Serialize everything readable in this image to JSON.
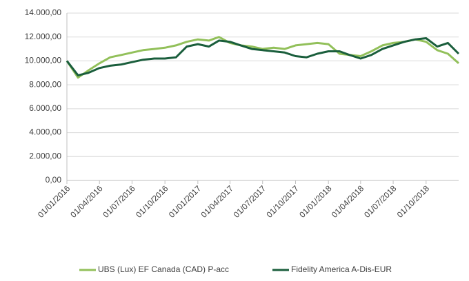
{
  "chart_data": {
    "type": "line",
    "x": [
      "2016-01-01",
      "2016-02-01",
      "2016-03-01",
      "2016-04-01",
      "2016-05-01",
      "2016-06-01",
      "2016-07-01",
      "2016-08-01",
      "2016-09-01",
      "2016-10-01",
      "2016-11-01",
      "2016-12-01",
      "2017-01-01",
      "2017-02-01",
      "2017-03-01",
      "2017-04-01",
      "2017-05-01",
      "2017-06-01",
      "2017-07-01",
      "2017-08-01",
      "2017-09-01",
      "2017-10-01",
      "2017-11-01",
      "2017-12-01",
      "2018-01-01",
      "2018-02-01",
      "2018-03-01",
      "2018-04-01",
      "2018-05-01",
      "2018-06-01",
      "2018-07-01",
      "2018-08-01",
      "2018-09-01",
      "2018-10-01",
      "2018-11-01",
      "2018-12-01",
      "2018-12-31"
    ],
    "series": [
      {
        "name": "UBS (Lux) EF Canada (CAD) P-acc",
        "color": "#92c05a",
        "values": [
          10000,
          8600,
          9200,
          9800,
          10300,
          10500,
          10700,
          10900,
          11000,
          11100,
          11300,
          11600,
          11800,
          11700,
          12000,
          11500,
          11300,
          11200,
          11000,
          11100,
          11000,
          11300,
          11400,
          11500,
          11400,
          10600,
          10500,
          10400,
          10800,
          11300,
          11500,
          11600,
          11800,
          11600,
          10900,
          10600,
          9800
        ]
      },
      {
        "name": "Fidelity America A-Dis-EUR",
        "color": "#1a5e3c",
        "values": [
          10000,
          8800,
          9000,
          9400,
          9600,
          9700,
          9900,
          10100,
          10200,
          10200,
          10300,
          11200,
          11400,
          11200,
          11700,
          11600,
          11300,
          11000,
          10900,
          10800,
          10700,
          10400,
          10300,
          10600,
          10800,
          10800,
          10500,
          10200,
          10500,
          11000,
          11300,
          11600,
          11800,
          11900,
          11200,
          11500,
          10600
        ]
      }
    ],
    "xlim": [
      "2016-01-01",
      "2018-12-31"
    ],
    "xticks": [
      {
        "value": "2016-01-01",
        "label": "01/01/2016"
      },
      {
        "value": "2016-04-01",
        "label": "01/04/2016"
      },
      {
        "value": "2016-07-01",
        "label": "01/07/2016"
      },
      {
        "value": "2016-10-01",
        "label": "01/10/2016"
      },
      {
        "value": "2017-01-01",
        "label": "01/01/2017"
      },
      {
        "value": "2017-04-01",
        "label": "01/04/2017"
      },
      {
        "value": "2017-07-01",
        "label": "01/07/2017"
      },
      {
        "value": "2017-10-01",
        "label": "01/10/2017"
      },
      {
        "value": "2018-01-01",
        "label": "01/01/2018"
      },
      {
        "value": "2018-04-01",
        "label": "01/04/2018"
      },
      {
        "value": "2018-07-01",
        "label": "01/07/2018"
      },
      {
        "value": "2018-10-01",
        "label": "01/10/2018"
      }
    ],
    "ylim": [
      0,
      14000
    ],
    "yticks": [
      {
        "value": 0,
        "label": "0,00"
      },
      {
        "value": 2000,
        "label": "2.000,00"
      },
      {
        "value": 4000,
        "label": "4.000,00"
      },
      {
        "value": 6000,
        "label": "6.000,00"
      },
      {
        "value": 8000,
        "label": "8.000,00"
      },
      {
        "value": 10000,
        "label": "10.000,00"
      },
      {
        "value": 12000,
        "label": "12.000,00"
      },
      {
        "value": 14000,
        "label": "14.000,00"
      }
    ],
    "grid": true,
    "legend": "bottom"
  }
}
